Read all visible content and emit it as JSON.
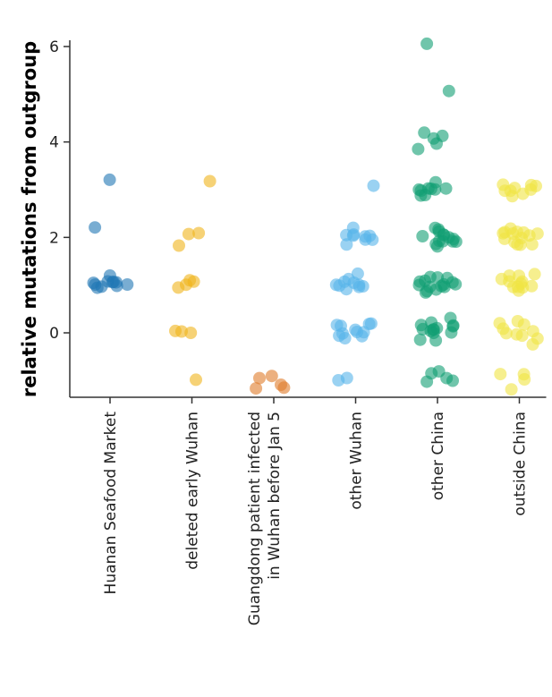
{
  "chart_data": {
    "type": "scatter",
    "title": "",
    "xlabel": "",
    "ylabel": "relative mutations from outgroup",
    "ylim": [
      -1.3,
      6.3
    ],
    "yticks": [
      "0",
      "2",
      "4",
      "6"
    ],
    "grid": false,
    "categories": [
      {
        "label": "Huanan Seafood Market",
        "lines": [
          "Huanan Seafood Market"
        ]
      },
      {
        "label": "deleted early Wuhan",
        "lines": [
          "deleted early Wuhan"
        ]
      },
      {
        "label": "Guangdong patient infected in Wuhan before Jan 5",
        "lines": [
          "Guangdong patient infected",
          "in Wuhan before Jan 5"
        ]
      },
      {
        "label": "other Wuhan",
        "lines": [
          "other Wuhan"
        ]
      },
      {
        "label": "other China",
        "lines": [
          "other China"
        ]
      },
      {
        "label": "outside China",
        "lines": [
          "outside China"
        ]
      }
    ],
    "series": [
      {
        "category": "Huanan Seafood Market",
        "color": "#1f77b4",
        "points": [
          [
            0,
            3.22
          ],
          [
            0,
            2.16
          ],
          [
            0,
            1.08
          ],
          [
            0,
            1.12
          ],
          [
            0,
            1.05
          ],
          [
            0,
            1.02
          ],
          [
            0,
            0.98
          ],
          [
            0,
            1.15
          ],
          [
            0,
            0.92
          ],
          [
            0,
            1.06
          ],
          [
            0,
            0.86
          ],
          [
            0,
            1.1
          ],
          [
            0,
            1.0
          ]
        ]
      },
      {
        "category": "deleted early Wuhan",
        "color": "#f0b41a",
        "points": [
          [
            1,
            3.12
          ],
          [
            1,
            2.08
          ],
          [
            1,
            2.05
          ],
          [
            1,
            1.92
          ],
          [
            1,
            1.05
          ],
          [
            1,
            1.04
          ],
          [
            1,
            1.0
          ],
          [
            1,
            0.98
          ],
          [
            1,
            0.12
          ],
          [
            1,
            0.1
          ],
          [
            1,
            -0.05
          ],
          [
            1,
            -1.0
          ]
        ]
      },
      {
        "category": "Guangdong patient infected in Wuhan before Jan 5",
        "color": "#e07b2a",
        "points": [
          [
            2,
            -1.12
          ],
          [
            2,
            -1.0
          ],
          [
            2,
            -0.98
          ],
          [
            2,
            -1.18
          ],
          [
            2,
            -1.06
          ]
        ]
      },
      {
        "category": "other Wuhan",
        "color": "#56b4e9",
        "points": [
          [
            3,
            3.05
          ],
          [
            3,
            2.2
          ],
          [
            3,
            2.1
          ],
          [
            3,
            2.05
          ],
          [
            3,
            2.0
          ],
          [
            3,
            1.95
          ],
          [
            3,
            1.9
          ],
          [
            3,
            2.12
          ],
          [
            3,
            2.02
          ],
          [
            3,
            1.98
          ],
          [
            3,
            1.15
          ],
          [
            3,
            1.1
          ],
          [
            3,
            1.05
          ],
          [
            3,
            1.02
          ],
          [
            3,
            1.0
          ],
          [
            3,
            0.98
          ],
          [
            3,
            0.95
          ],
          [
            3,
            1.08
          ],
          [
            3,
            1.12
          ],
          [
            3,
            1.0
          ],
          [
            3,
            0.2
          ],
          [
            3,
            0.15
          ],
          [
            3,
            0.1
          ],
          [
            3,
            0.05
          ],
          [
            3,
            0.0
          ],
          [
            3,
            -0.05
          ],
          [
            3,
            -0.1
          ],
          [
            3,
            -0.15
          ],
          [
            3,
            0.08
          ],
          [
            3,
            0.12
          ],
          [
            3,
            -0.02
          ],
          [
            3,
            -0.95
          ],
          [
            3,
            -1.02
          ]
        ]
      },
      {
        "category": "other China",
        "color": "#109e73",
        "points": [
          [
            4,
            6.02
          ],
          [
            4,
            5.0
          ],
          [
            4,
            4.1
          ],
          [
            4,
            4.05
          ],
          [
            4,
            4.0
          ],
          [
            4,
            3.95
          ],
          [
            4,
            3.9
          ],
          [
            4,
            3.2
          ],
          [
            4,
            3.1
          ],
          [
            4,
            3.05
          ],
          [
            4,
            3.0
          ],
          [
            4,
            2.95
          ],
          [
            4,
            2.9
          ],
          [
            4,
            2.85
          ],
          [
            4,
            3.02
          ],
          [
            4,
            2.98
          ],
          [
            4,
            2.2
          ],
          [
            4,
            2.15
          ],
          [
            4,
            2.1
          ],
          [
            4,
            2.05
          ],
          [
            4,
            2.0
          ],
          [
            4,
            1.95
          ],
          [
            4,
            1.9
          ],
          [
            4,
            1.85
          ],
          [
            4,
            2.08
          ],
          [
            4,
            2.02
          ],
          [
            4,
            1.98
          ],
          [
            4,
            2.12
          ],
          [
            4,
            1.92
          ],
          [
            4,
            2.04
          ],
          [
            4,
            1.2
          ],
          [
            4,
            1.15
          ],
          [
            4,
            1.1
          ],
          [
            4,
            1.05
          ],
          [
            4,
            1.0
          ],
          [
            4,
            0.95
          ],
          [
            4,
            0.9
          ],
          [
            4,
            0.85
          ],
          [
            4,
            1.08
          ],
          [
            4,
            1.02
          ],
          [
            4,
            0.98
          ],
          [
            4,
            1.12
          ],
          [
            4,
            0.92
          ],
          [
            4,
            1.04
          ],
          [
            4,
            0.96
          ],
          [
            4,
            0.25
          ],
          [
            4,
            0.2
          ],
          [
            4,
            0.15
          ],
          [
            4,
            0.1
          ],
          [
            4,
            0.05
          ],
          [
            4,
            0.0
          ],
          [
            4,
            -0.05
          ],
          [
            4,
            -0.1
          ],
          [
            4,
            -0.15
          ],
          [
            4,
            0.08
          ],
          [
            4,
            0.02
          ],
          [
            4,
            -0.02
          ],
          [
            4,
            0.12
          ],
          [
            4,
            -0.08
          ],
          [
            4,
            -0.85
          ],
          [
            4,
            -0.9
          ],
          [
            4,
            -0.95
          ],
          [
            4,
            -1.0
          ],
          [
            4,
            -0.92
          ]
        ]
      },
      {
        "category": "outside China",
        "color": "#f0e442",
        "points": [
          [
            5,
            3.12
          ],
          [
            5,
            3.08
          ],
          [
            5,
            3.05
          ],
          [
            5,
            3.02
          ],
          [
            5,
            3.0
          ],
          [
            5,
            2.95
          ],
          [
            5,
            2.8
          ],
          [
            5,
            3.1
          ],
          [
            5,
            3.04
          ],
          [
            5,
            2.2
          ],
          [
            5,
            2.15
          ],
          [
            5,
            2.1
          ],
          [
            5,
            2.05
          ],
          [
            5,
            2.0
          ],
          [
            5,
            1.95
          ],
          [
            5,
            1.9
          ],
          [
            5,
            1.85
          ],
          [
            5,
            2.08
          ],
          [
            5,
            2.02
          ],
          [
            5,
            1.98
          ],
          [
            5,
            2.12
          ],
          [
            5,
            1.92
          ],
          [
            5,
            2.04
          ],
          [
            5,
            1.2
          ],
          [
            5,
            1.15
          ],
          [
            5,
            1.1
          ],
          [
            5,
            1.05
          ],
          [
            5,
            1.0
          ],
          [
            5,
            0.95
          ],
          [
            5,
            0.9
          ],
          [
            5,
            0.85
          ],
          [
            5,
            1.08
          ],
          [
            5,
            1.02
          ],
          [
            5,
            0.98
          ],
          [
            5,
            1.12
          ],
          [
            5,
            0.2
          ],
          [
            5,
            0.15
          ],
          [
            5,
            0.1
          ],
          [
            5,
            0.05
          ],
          [
            5,
            0.0
          ],
          [
            5,
            -0.05
          ],
          [
            5,
            -0.1
          ],
          [
            5,
            -0.15
          ],
          [
            5,
            0.08
          ],
          [
            5,
            0.02
          ],
          [
            5,
            -0.9
          ],
          [
            5,
            -0.95
          ],
          [
            5,
            -1.0
          ],
          [
            5,
            -1.1
          ]
        ]
      }
    ]
  }
}
